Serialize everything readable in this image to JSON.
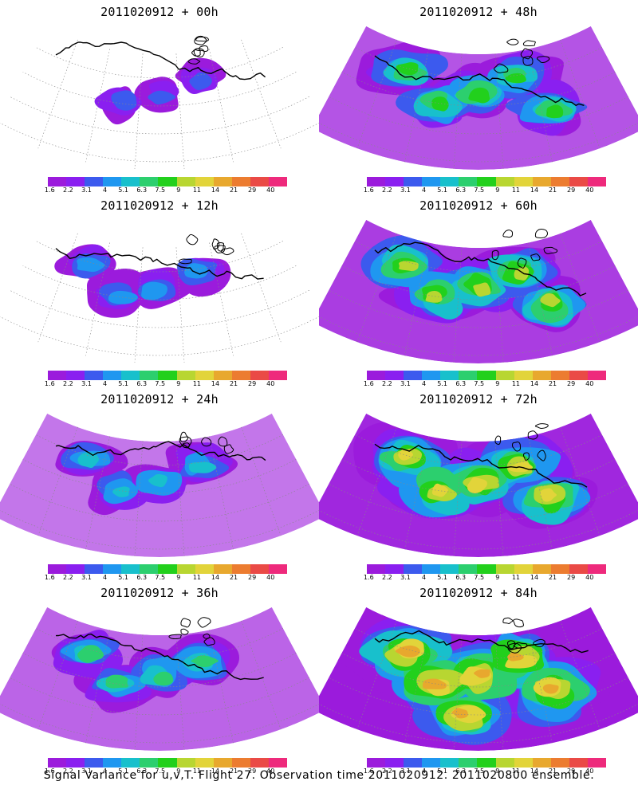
{
  "colorbar": {
    "colors": [
      "#9b1bdc",
      "#8a1ff0",
      "#3c5aee",
      "#1f97f0",
      "#18c0cc",
      "#2ccf6e",
      "#22d01c",
      "#b8d631",
      "#e2d43a",
      "#e8a82e",
      "#ec7c30",
      "#ea4a46",
      "#ee2a7c"
    ],
    "ticks": [
      "1.6",
      "2.2",
      "3.1",
      "4",
      "5.1",
      "6.3",
      "7.5",
      "9",
      "11",
      "14",
      "21",
      "29",
      "40"
    ]
  },
  "panels": [
    {
      "title": "2011020912 + 00h",
      "level": 0.15
    },
    {
      "title": "2011020912 + 48h",
      "level": 0.55
    },
    {
      "title": "2011020912 + 12h",
      "level": 0.3
    },
    {
      "title": "2011020912 + 60h",
      "level": 0.65
    },
    {
      "title": "2011020912 + 24h",
      "level": 0.4
    },
    {
      "title": "2011020912 + 72h",
      "level": 0.75
    },
    {
      "title": "2011020912 + 36h",
      "level": 0.48
    },
    {
      "title": "2011020912 + 84h",
      "level": 0.85
    }
  ],
  "caption": "Signal Variance for u,v,T. Flight 27. Observation time 2011020912. 2011020800 ensemble."
}
